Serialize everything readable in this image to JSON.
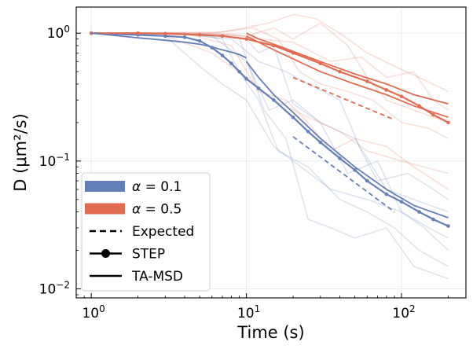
{
  "chart_data": {
    "type": "line",
    "xscale": "log",
    "yscale": "log",
    "xlim": [
      0.8,
      260
    ],
    "ylim": [
      0.0085,
      1.6
    ],
    "xlabel": "Time (s)",
    "ylabel": "D (μm²/s)",
    "grid": true,
    "legend_position": "lower-left",
    "x_ticks": [
      {
        "value": 1,
        "base": "10",
        "exp": "0"
      },
      {
        "value": 10,
        "base": "10",
        "exp": "1"
      },
      {
        "value": 100,
        "base": "10",
        "exp": "2"
      }
    ],
    "y_ticks": [
      {
        "value": 0.01,
        "base": "10",
        "exp": "−2"
      },
      {
        "value": 0.1,
        "base": "10",
        "exp": "−1"
      },
      {
        "value": 1,
        "base": "10",
        "exp": "0"
      }
    ],
    "colors": {
      "alpha_0_1": "#6580b8",
      "alpha_0_5": "#e06c52"
    },
    "legend": [
      {
        "kind": "patch",
        "color": "#6580b8",
        "prefix": "α",
        "rest": " = 0.1"
      },
      {
        "kind": "patch",
        "color": "#e06c52",
        "prefix": "α",
        "rest": " = 0.5"
      },
      {
        "kind": "dashed",
        "color": "#000000",
        "label": "Expected"
      },
      {
        "kind": "marker",
        "color": "#000000",
        "label": "STEP"
      },
      {
        "kind": "solid",
        "color": "#000000",
        "label": "TA-MSD"
      }
    ],
    "series": [
      {
        "name": "α = 0.1",
        "method": "Expected",
        "style": "dashed",
        "color": "#6580b8",
        "points": [
          [
            20,
            0.155
          ],
          [
            90,
            0.04
          ]
        ]
      },
      {
        "name": "α = 0.5",
        "method": "Expected",
        "style": "dashed",
        "color": "#e06c52",
        "points": [
          [
            20,
            0.45
          ],
          [
            90,
            0.21
          ]
        ]
      },
      {
        "name": "α = 0.1",
        "method": "TA-MSD",
        "style": "solid",
        "color": "#6580b8",
        "points": [
          [
            10,
            0.6
          ],
          [
            12,
            0.45
          ],
          [
            15,
            0.33
          ],
          [
            20,
            0.24
          ],
          [
            30,
            0.15
          ],
          [
            50,
            0.09
          ],
          [
            80,
            0.06
          ],
          [
            120,
            0.045
          ],
          [
            200,
            0.036
          ]
        ]
      },
      {
        "name": "α = 0.5",
        "method": "TA-MSD",
        "style": "solid",
        "color": "#e06c52",
        "points": [
          [
            10,
            1.0
          ],
          [
            12,
            0.9
          ],
          [
            15,
            0.82
          ],
          [
            20,
            0.72
          ],
          [
            30,
            0.6
          ],
          [
            50,
            0.48
          ],
          [
            80,
            0.4
          ],
          [
            120,
            0.33
          ],
          [
            200,
            0.28
          ]
        ]
      },
      {
        "name": "α = 0.1",
        "method": "STEP",
        "style": "marker",
        "color": "#6580b8",
        "points": [
          [
            1,
            1.0
          ],
          [
            2,
            0.97
          ],
          [
            3,
            0.95
          ],
          [
            4,
            0.93
          ],
          [
            5,
            0.87
          ],
          [
            6,
            0.77
          ],
          [
            7,
            0.67
          ],
          [
            8,
            0.58
          ],
          [
            9,
            0.5
          ],
          [
            10,
            0.44
          ],
          [
            12,
            0.37
          ],
          [
            15,
            0.3
          ],
          [
            20,
            0.22
          ],
          [
            25,
            0.17
          ],
          [
            30,
            0.14
          ],
          [
            40,
            0.105
          ],
          [
            50,
            0.085
          ],
          [
            60,
            0.07
          ],
          [
            80,
            0.055
          ],
          [
            100,
            0.048
          ],
          [
            130,
            0.04
          ],
          [
            160,
            0.035
          ],
          [
            200,
            0.031
          ]
        ]
      },
      {
        "name": "α = 0.5",
        "method": "STEP",
        "style": "marker",
        "color": "#e06c52",
        "points": [
          [
            1,
            1.0
          ],
          [
            2,
            1.0
          ],
          [
            3,
            0.99
          ],
          [
            5,
            0.97
          ],
          [
            7,
            0.95
          ],
          [
            10,
            0.9
          ],
          [
            15,
            0.8
          ],
          [
            20,
            0.7
          ],
          [
            30,
            0.58
          ],
          [
            40,
            0.5
          ],
          [
            60,
            0.42
          ],
          [
            80,
            0.36
          ],
          [
            100,
            0.32
          ],
          [
            130,
            0.27
          ],
          [
            160,
            0.23
          ],
          [
            200,
            0.2
          ]
        ]
      },
      {
        "name": "α = 0.1",
        "method": "TA-MSD",
        "style": "solid",
        "color": "#6580b8",
        "points": [
          [
            1,
            1.0
          ],
          [
            2,
            0.92
          ],
          [
            3,
            0.88
          ],
          [
            4,
            0.85
          ],
          [
            5,
            0.82
          ],
          [
            6,
            0.78
          ],
          [
            7,
            0.74
          ],
          [
            8,
            0.71
          ],
          [
            9,
            0.68
          ],
          [
            10,
            0.64
          ]
        ]
      },
      {
        "name": "α = 0.5",
        "method": "TA-MSD",
        "style": "solid",
        "color": "#e06c52",
        "points": [
          [
            10,
            0.95
          ],
          [
            15,
            0.74
          ],
          [
            20,
            0.63
          ],
          [
            30,
            0.5
          ],
          [
            50,
            0.4
          ],
          [
            80,
            0.33
          ],
          [
            120,
            0.27
          ],
          [
            200,
            0.22
          ]
        ]
      }
    ],
    "trajectories": [
      {
        "name": "α = 0.1",
        "color": "#6580b8",
        "lines": [
          [
            [
              1,
              1.0
            ],
            [
              3,
              0.99
            ],
            [
              6,
              0.95
            ],
            [
              10,
              0.6
            ],
            [
              14,
              0.25
            ],
            [
              20,
              0.3
            ],
            [
              30,
              0.2
            ],
            [
              45,
              0.08
            ],
            [
              70,
              0.1
            ],
            [
              100,
              0.04
            ],
            [
              140,
              0.03
            ],
            [
              200,
              0.02
            ]
          ],
          [
            [
              1,
              1.0
            ],
            [
              4,
              1.0
            ],
            [
              7,
              0.9
            ],
            [
              9,
              0.5
            ],
            [
              12,
              0.3
            ],
            [
              16,
              0.12
            ],
            [
              25,
              0.09
            ],
            [
              40,
              0.05
            ],
            [
              60,
              0.04
            ],
            [
              90,
              0.03
            ],
            [
              130,
              0.02
            ],
            [
              200,
              0.015
            ]
          ],
          [
            [
              1,
              1.0
            ],
            [
              2,
              1.0
            ],
            [
              5,
              0.98
            ],
            [
              8,
              0.96
            ],
            [
              10,
              0.9
            ],
            [
              12,
              0.7
            ],
            [
              15,
              0.8
            ],
            [
              20,
              0.28
            ],
            [
              30,
              0.2
            ],
            [
              50,
              0.15
            ],
            [
              80,
              0.06
            ],
            [
              120,
              0.05
            ],
            [
              200,
              0.04
            ]
          ],
          [
            [
              1,
              1.0
            ],
            [
              3,
              0.95
            ],
            [
              5,
              0.55
            ],
            [
              7,
              0.4
            ],
            [
              10,
              0.3
            ],
            [
              15,
              0.13
            ],
            [
              20,
              0.1
            ],
            [
              35,
              0.06
            ],
            [
              60,
              0.05
            ],
            [
              100,
              0.04
            ],
            [
              150,
              0.03
            ],
            [
              200,
              0.025
            ]
          ],
          [
            [
              1,
              1.0
            ],
            [
              4,
              0.98
            ],
            [
              8,
              0.9
            ],
            [
              12,
              0.6
            ],
            [
              18,
              0.5
            ],
            [
              25,
              0.4
            ],
            [
              40,
              0.3
            ],
            [
              55,
              0.12
            ],
            [
              70,
              0.07
            ],
            [
              110,
              0.08
            ],
            [
              160,
              0.06
            ],
            [
              200,
              0.05
            ]
          ],
          [
            [
              1,
              1.0
            ],
            [
              5,
              0.98
            ],
            [
              9,
              0.92
            ],
            [
              13,
              0.25
            ],
            [
              18,
              0.15
            ],
            [
              25,
              0.035
            ],
            [
              35,
              0.03
            ],
            [
              50,
              0.025
            ],
            [
              80,
              0.03
            ],
            [
              120,
              0.015
            ],
            [
              200,
              0.012
            ]
          ]
        ]
      },
      {
        "name": "α = 0.5",
        "color": "#e06c52",
        "lines": [
          [
            [
              1,
              1.0
            ],
            [
              5,
              1.0
            ],
            [
              10,
              0.95
            ],
            [
              15,
              1.1
            ],
            [
              20,
              0.9
            ],
            [
              30,
              1.2
            ],
            [
              45,
              0.8
            ],
            [
              60,
              0.45
            ],
            [
              80,
              0.3
            ],
            [
              120,
              0.25
            ],
            [
              200,
              0.2
            ]
          ],
          [
            [
              1,
              1.0
            ],
            [
              4,
              1.0
            ],
            [
              8,
              0.8
            ],
            [
              12,
              0.35
            ],
            [
              18,
              0.3
            ],
            [
              25,
              0.2
            ],
            [
              35,
              0.12
            ],
            [
              50,
              0.15
            ],
            [
              80,
              0.13
            ],
            [
              120,
              0.09
            ],
            [
              200,
              0.06
            ]
          ],
          [
            [
              1,
              1.0
            ],
            [
              6,
              1.0
            ],
            [
              11,
              1.1
            ],
            [
              16,
              0.9
            ],
            [
              22,
              0.5
            ],
            [
              30,
              0.4
            ],
            [
              45,
              0.35
            ],
            [
              65,
              0.3
            ],
            [
              100,
              0.2
            ],
            [
              150,
              0.18
            ],
            [
              200,
              0.15
            ]
          ],
          [
            [
              1,
              1.0
            ],
            [
              7,
              1.02
            ],
            [
              14,
              1.2
            ],
            [
              20,
              1.4
            ],
            [
              28,
              1.3
            ],
            [
              40,
              1.0
            ],
            [
              60,
              0.7
            ],
            [
              90,
              0.55
            ],
            [
              130,
              0.45
            ],
            [
              200,
              0.35
            ]
          ],
          [
            [
              1,
              1.0
            ],
            [
              3,
              0.95
            ],
            [
              6,
              0.7
            ],
            [
              10,
              0.45
            ],
            [
              15,
              0.3
            ],
            [
              25,
              0.22
            ],
            [
              40,
              0.17
            ],
            [
              60,
              0.12
            ],
            [
              100,
              0.1
            ],
            [
              200,
              0.08
            ]
          ],
          [
            [
              1,
              1.0
            ],
            [
              8,
              0.98
            ],
            [
              12,
              0.9
            ],
            [
              20,
              0.85
            ],
            [
              35,
              0.6
            ],
            [
              55,
              0.65
            ],
            [
              80,
              0.45
            ],
            [
              120,
              0.5
            ],
            [
              160,
              0.3
            ],
            [
              200,
              0.25
            ]
          ]
        ]
      }
    ]
  }
}
